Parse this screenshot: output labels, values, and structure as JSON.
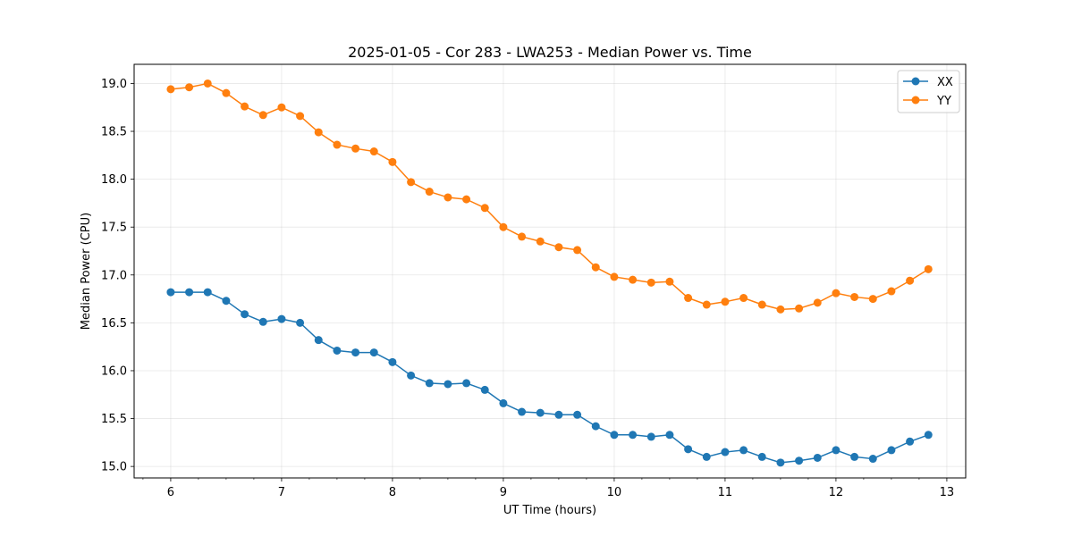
{
  "chart_data": {
    "type": "line",
    "title": "2025-01-05 - Cor 283 - LWA253 - Median Power vs. Time",
    "xlabel": "UT Time (hours)",
    "ylabel": "Median Power (CPU)",
    "xlim": [
      5.67,
      13.17
    ],
    "ylim": [
      14.88,
      19.2
    ],
    "xticks": [
      6,
      7,
      8,
      9,
      10,
      11,
      12,
      13
    ],
    "xtick_labels": [
      "6",
      "7",
      "8",
      "9",
      "10",
      "11",
      "12",
      "13"
    ],
    "xminor_step": 0.25,
    "yticks": [
      15.0,
      15.5,
      16.0,
      16.5,
      17.0,
      17.5,
      18.0,
      18.5,
      19.0
    ],
    "ytick_labels": [
      "15.0",
      "15.5",
      "16.0",
      "16.5",
      "17.0",
      "17.5",
      "18.0",
      "18.5",
      "19.0"
    ],
    "grid": true,
    "legend_position": "top-right",
    "x": [
      6.0,
      6.1667,
      6.3333,
      6.5,
      6.6667,
      6.8333,
      7.0,
      7.1667,
      7.3333,
      7.5,
      7.6667,
      7.8333,
      8.0,
      8.1667,
      8.3333,
      8.5,
      8.6667,
      8.8333,
      9.0,
      9.1667,
      9.3333,
      9.5,
      9.6667,
      9.8333,
      10.0,
      10.1667,
      10.3333,
      10.5,
      10.6667,
      10.8333,
      11.0,
      11.1667,
      11.3333,
      11.5,
      11.6667,
      11.8333,
      12.0,
      12.1667,
      12.3333,
      12.5,
      12.6667,
      12.8333
    ],
    "series": [
      {
        "name": "XX",
        "color": "#1f77b4",
        "values": [
          16.82,
          16.82,
          16.82,
          16.73,
          16.59,
          16.51,
          16.54,
          16.5,
          16.32,
          16.21,
          16.19,
          16.19,
          16.09,
          15.95,
          15.87,
          15.86,
          15.87,
          15.8,
          15.66,
          15.57,
          15.56,
          15.54,
          15.54,
          15.42,
          15.33,
          15.33,
          15.31,
          15.33,
          15.18,
          15.1,
          15.15,
          15.17,
          15.1,
          15.04,
          15.06,
          15.09,
          15.17,
          15.1,
          15.08,
          15.17,
          15.26,
          15.33
        ]
      },
      {
        "name": "YY",
        "color": "#ff7f0e",
        "values": [
          18.94,
          18.96,
          19.0,
          18.9,
          18.76,
          18.67,
          18.75,
          18.66,
          18.49,
          18.36,
          18.32,
          18.29,
          18.18,
          17.97,
          17.87,
          17.81,
          17.79,
          17.7,
          17.5,
          17.4,
          17.35,
          17.29,
          17.26,
          17.08,
          16.98,
          16.95,
          16.92,
          16.93,
          16.76,
          16.69,
          16.72,
          16.76,
          16.69,
          16.64,
          16.65,
          16.71,
          16.81,
          16.77,
          16.75,
          16.83,
          16.94,
          17.06
        ]
      }
    ]
  }
}
